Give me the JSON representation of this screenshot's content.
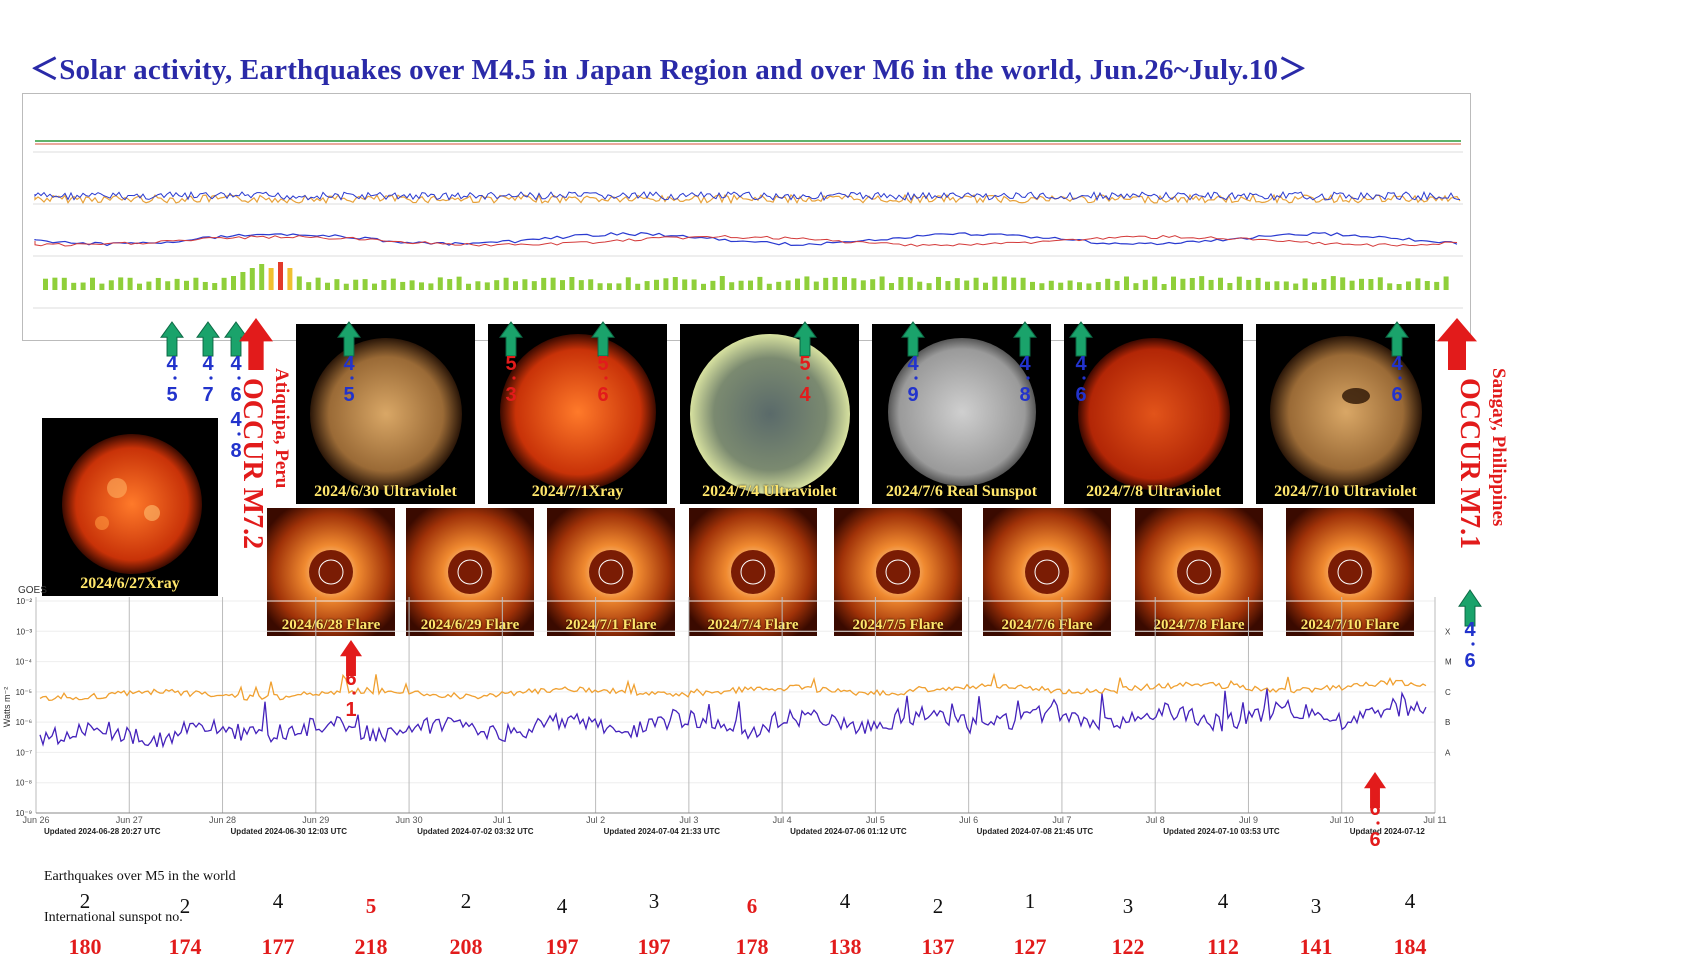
{
  "title": "＜Solar activity, Earthquakes over M4.5 in Japan Region and over M6 in the world, Jun.26~July.10＞",
  "colors": {
    "title": "#2a2aa8",
    "arrow_green": "#1aa36b",
    "arrow_red": "#e21b1b",
    "xray_long": "#f0a030",
    "xray_short": "#4422bb"
  },
  "solar_images": [
    {
      "caption": "2024/6/27Xray",
      "kind": "xray"
    },
    {
      "caption": "2024/6/30 Ultraviolet",
      "kind": "uv-gold"
    },
    {
      "caption": "2024/7/1Xray",
      "kind": "xray"
    },
    {
      "caption": "2024/7/4 Ultraviolet",
      "kind": "uv-blue"
    },
    {
      "caption": "2024/7/6 Real Sunspot",
      "kind": "white"
    },
    {
      "caption": "2024/7/8 Ultraviolet",
      "kind": "uv-red"
    },
    {
      "caption": "2024/7/10 Ultraviolet",
      "kind": "uv-gold"
    }
  ],
  "flare_images": [
    {
      "caption": "2024/6/28 Flare"
    },
    {
      "caption": "2024/6/29 Flare"
    },
    {
      "caption": "2024/7/1 Flare"
    },
    {
      "caption": "2024/7/4 Flare"
    },
    {
      "caption": "2024/7/5 Flare"
    },
    {
      "caption": "2024/7/6 Flare"
    },
    {
      "caption": "2024/7/8 Flare"
    },
    {
      "caption": "2024/7/10 Flare"
    }
  ],
  "quake_marks": [
    {
      "d1": "4",
      "d2": "5",
      "color": "blue"
    },
    {
      "d1": "4",
      "d2": "7",
      "color": "blue"
    },
    {
      "d1": "4",
      "d2": "6",
      "color": "blue"
    },
    {
      "d1": "4",
      "d2": "8",
      "color": "blue"
    },
    {
      "d1": "4",
      "d2": "5",
      "color": "blue"
    },
    {
      "d1": "5",
      "d2": "3",
      "color": "red"
    },
    {
      "d1": "5",
      "d2": "6",
      "color": "red"
    },
    {
      "d1": "5",
      "d2": "4",
      "color": "red"
    },
    {
      "d1": "4",
      "d2": "9",
      "color": "blue"
    },
    {
      "d1": "4",
      "d2": "8",
      "color": "blue"
    },
    {
      "d1": "4",
      "d2": "6",
      "color": "blue"
    },
    {
      "d1": "4",
      "d2": "6",
      "color": "blue"
    },
    {
      "d1": "6",
      "d2": "1",
      "color": "red"
    },
    {
      "d1": "6",
      "d2": "6",
      "color": "red"
    },
    {
      "d1": "4",
      "d2": "6",
      "color": "blue"
    }
  ],
  "occur_left": {
    "text": "OCCUR M7.2",
    "place": "Atiquipa, Peru"
  },
  "occur_right": {
    "text": "OCCUR M7.1",
    "place": "Sangay, Philippines"
  },
  "xray_plot": {
    "top_label": "GOES",
    "y_axis": "Watts m⁻²",
    "y_ticks": [
      "10⁻²",
      "10⁻³",
      "10⁻⁴",
      "10⁻⁵",
      "10⁻⁶",
      "10⁻⁷",
      "10⁻⁸",
      "10⁻⁹"
    ],
    "flare_classes": [
      "X",
      "M",
      "C",
      "B",
      "A"
    ],
    "x_ticks": [
      "Jun 26",
      "Jun 27",
      "Jun 28",
      "Jun 29",
      "Jun 30",
      "Jul 1",
      "Jul 2",
      "Jul 3",
      "Jul 4",
      "Jul 5",
      "Jul 6",
      "Jul 7",
      "Jul 8",
      "Jul 9",
      "Jul 10",
      "Jul 11"
    ],
    "updates": [
      "Updated 2024-06-28 20:27 UTC",
      "Updated 2024-06-30 12:03 UTC",
      "Updated 2024-07-02 03:32 UTC",
      "Updated 2024-07-04 21:33 UTC",
      "Updated 2024-07-06 01:12 UTC",
      "Updated 2024-07-08 21:45 UTC",
      "Updated 2024-07-10 03:53 UTC",
      "Updated 2024-07-12"
    ]
  },
  "rows": {
    "eq_label": "Earthquakes over M5 in the world",
    "ss_label": "International sunspot no."
  },
  "chart_data": {
    "type": "table",
    "title": "＜Solar activity, Earthquakes over M4.5 in Japan Region and over M6 in the world, Jun.26~July.10＞",
    "categories": [
      "Jun 26",
      "Jun 27",
      "Jun 28",
      "Jun 29",
      "Jun 30",
      "Jul 1",
      "Jul 2",
      "Jul 3",
      "Jul 4",
      "Jul 5",
      "Jul 6",
      "Jul 7",
      "Jul 8",
      "Jul 9",
      "Jul 10"
    ],
    "series": [
      {
        "name": "Earthquakes over M5 in the world",
        "values": [
          2,
          2,
          4,
          5,
          2,
          4,
          3,
          6,
          4,
          2,
          1,
          3,
          4,
          3,
          4
        ],
        "highlight": [
          false,
          false,
          false,
          true,
          false,
          false,
          false,
          true,
          false,
          false,
          false,
          false,
          false,
          false,
          false
        ]
      },
      {
        "name": "International sunspot no.",
        "values": [
          180,
          174,
          177,
          218,
          208,
          197,
          197,
          178,
          138,
          137,
          127,
          122,
          112,
          141,
          184
        ]
      }
    ]
  }
}
